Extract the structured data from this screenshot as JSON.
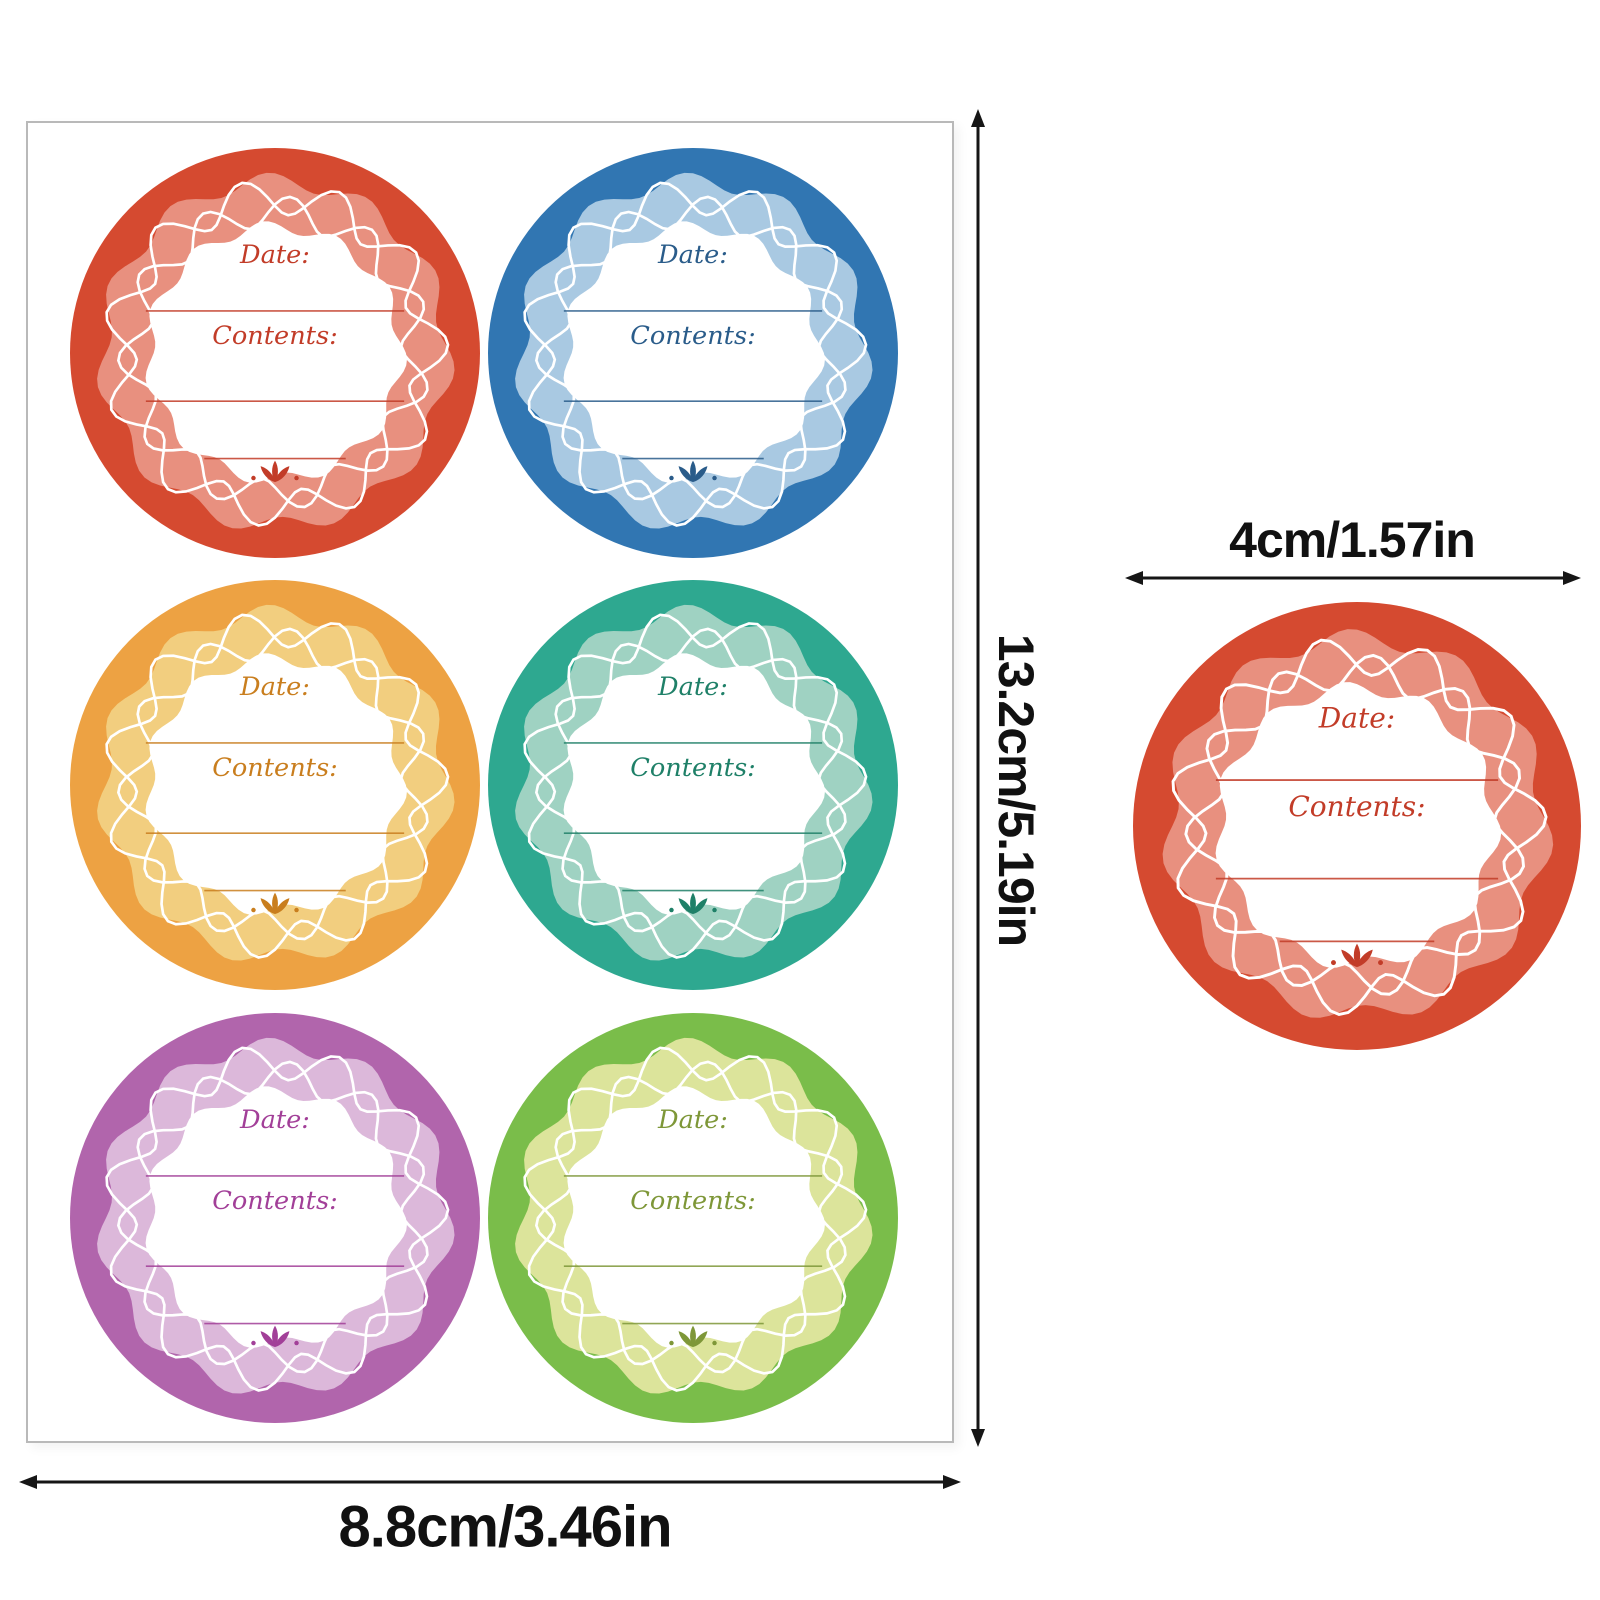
{
  "image": {
    "background": "#ffffff",
    "arrow_color": "#161616"
  },
  "label_text": {
    "date": "Date:",
    "contents": "Contents:"
  },
  "sheet": {
    "height_dimension": "13.2cm/5.19in",
    "width_dimension": "8.8cm/3.46in",
    "labels": [
      {
        "name": "red",
        "ring": "#D54A30",
        "band": "#E8907F",
        "text": "#C23C28"
      },
      {
        "name": "blue",
        "ring": "#3176B2",
        "band": "#A9C9E2",
        "text": "#2A5C8A"
      },
      {
        "name": "orange",
        "ring": "#EDA243",
        "band": "#F2CE7F",
        "text": "#C97E1E"
      },
      {
        "name": "teal",
        "ring": "#2EA890",
        "band": "#9FD2C2",
        "text": "#1F8068"
      },
      {
        "name": "purple",
        "ring": "#B165AC",
        "band": "#DCB8DA",
        "text": "#A23F98"
      },
      {
        "name": "green",
        "ring": "#7ABD4A",
        "band": "#DCE49B",
        "text": "#7E9738"
      }
    ]
  },
  "single_label": {
    "size_dimension": "4cm/1.57in",
    "ring": "#D54A30",
    "band": "#E8907F",
    "text": "#C23C28"
  }
}
